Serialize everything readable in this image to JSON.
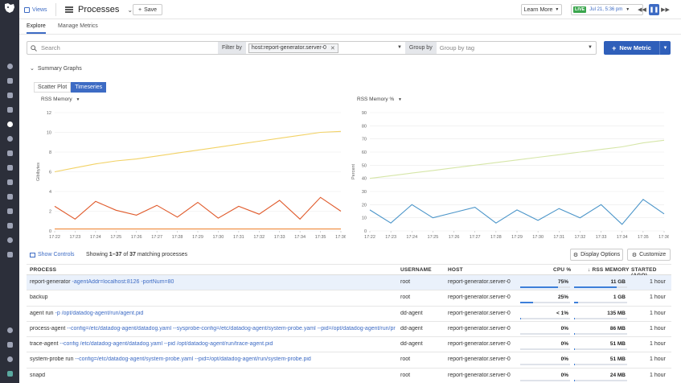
{
  "topbar": {
    "views_label": "Views",
    "title": "Processes",
    "save_label": "Save",
    "learn_more_label": "Learn More",
    "live_badge": "LIVE",
    "live_time": "Jul 21, 5:36 pm"
  },
  "tabs": [
    {
      "label": "Explore",
      "active": true
    },
    {
      "label": "Manage Metrics",
      "active": false
    }
  ],
  "search": {
    "placeholder": "Search"
  },
  "filter": {
    "label": "Filter by",
    "chip": "host:report-generator.server-0"
  },
  "groupby": {
    "label": "Group by",
    "placeholder": "Group by tag"
  },
  "new_metric_label": "New Metric",
  "summary": {
    "heading": "Summary Graphs",
    "toggle": [
      "Scatter Plot",
      "Timeseries"
    ],
    "active_toggle": "Timeseries"
  },
  "chart_data": [
    {
      "type": "line",
      "metric_selector": "RSS Memory",
      "ylabel": "Gibibytes",
      "ylim": [
        0,
        12
      ],
      "yticks": [
        "0",
        "2",
        "4",
        "6",
        "8",
        "10",
        "12"
      ],
      "x": [
        "17:22",
        "17:23",
        "17:24",
        "17:25",
        "17:26",
        "17:27",
        "17:28",
        "17:29",
        "17:30",
        "17:31",
        "17:32",
        "17:33",
        "17:34",
        "17:35",
        "17:36"
      ],
      "series": [
        {
          "color": "#f2d266",
          "values": [
            6,
            6.4,
            6.8,
            7.1,
            7.3,
            7.6,
            7.9,
            8.2,
            8.5,
            8.8,
            9.1,
            9.4,
            9.7,
            10.0,
            10.1
          ]
        },
        {
          "color": "#e05a2b",
          "values": [
            2.5,
            1.2,
            3.0,
            2.1,
            1.6,
            2.6,
            1.4,
            2.9,
            1.3,
            2.5,
            1.7,
            3.1,
            1.2,
            3.4,
            2.0
          ]
        },
        {
          "color": "#f08a3c",
          "values": [
            0.2,
            0.2,
            0.2,
            0.2,
            0.2,
            0.2,
            0.2,
            0.2,
            0.2,
            0.2,
            0.2,
            0.2,
            0.2,
            0.2,
            0.2
          ]
        }
      ]
    },
    {
      "type": "line",
      "metric_selector": "RSS Memory %",
      "ylabel": "Percent",
      "ylim": [
        0,
        90
      ],
      "yticks": [
        "0",
        "10",
        "20",
        "30",
        "40",
        "50",
        "60",
        "70",
        "80",
        "90"
      ],
      "x": [
        "17:22",
        "17:23",
        "17:24",
        "17:25",
        "17:26",
        "17:27",
        "17:28",
        "17:29",
        "17:30",
        "17:31",
        "17:32",
        "17:33",
        "17:34",
        "17:35",
        "17:36"
      ],
      "series": [
        {
          "color": "#d6e6a8",
          "values": [
            40,
            42,
            44,
            46,
            48,
            50,
            52,
            54,
            56,
            58,
            60,
            62,
            64,
            67,
            69
          ]
        },
        {
          "color": "#4b95c9",
          "values": [
            16,
            6,
            20,
            10,
            14,
            18,
            6,
            16,
            8,
            17,
            10,
            20,
            5,
            24,
            13
          ]
        }
      ]
    }
  ],
  "table_controls": {
    "show_controls": "Show Controls",
    "showing_prefix": "Showing ",
    "showing_range": "1–37",
    "showing_of": " of ",
    "showing_total": "37",
    "showing_suffix": " matching processes",
    "display_options": "Display Options",
    "customize": "Customize"
  },
  "table": {
    "headers": {
      "process": "PROCESS",
      "username": "USERNAME",
      "host": "HOST",
      "cpu": "CPU %",
      "rss": "RSS MEMORY",
      "started": "STARTED (AGO)"
    },
    "rows": [
      {
        "cmd": "report-generator",
        "args": " -agentAddr=localhost:8126 -portNum=80",
        "user": "root",
        "host": "report-generator.server-0",
        "cpu": "75%",
        "cpu_frac": 0.75,
        "rss": "11 GB",
        "rss_frac": 0.8,
        "started": "1 hour",
        "selected": true
      },
      {
        "cmd": "backup",
        "args": "",
        "user": "root",
        "host": "report-generator.server-0",
        "cpu": "25%",
        "cpu_frac": 0.25,
        "rss": "1 GB",
        "rss_frac": 0.08,
        "started": "1 hour",
        "selected": false
      },
      {
        "cmd": "agent run",
        "args": " -p /opt/datadog-agent/run/agent.pid",
        "user": "dd-agent",
        "host": "report-generator.server-0",
        "cpu": "< 1%",
        "cpu_frac": 0.01,
        "rss": "135 MB",
        "rss_frac": 0.01,
        "started": "1 hour",
        "selected": false
      },
      {
        "cmd": "process-agent",
        "args": " --config=/etc/datadog-agent/datadog.yaml --sysprobe-config=/etc/datadog-agent/system-probe.yaml --pid=/opt/datadog-agent/run/pro...",
        "user": "dd-agent",
        "host": "report-generator.server-0",
        "cpu": "0%",
        "cpu_frac": 0,
        "rss": "86 MB",
        "rss_frac": 0.007,
        "started": "1 hour",
        "selected": false
      },
      {
        "cmd": "trace-agent",
        "args": " --config /etc/datadog-agent/datadog.yaml --pid /opt/datadog-agent/run/trace-agent.pid",
        "user": "dd-agent",
        "host": "report-generator.server-0",
        "cpu": "0%",
        "cpu_frac": 0,
        "rss": "51 MB",
        "rss_frac": 0.005,
        "started": "1 hour",
        "selected": false
      },
      {
        "cmd": "system-probe run",
        "args": " --config=/etc/datadog-agent/system-probe.yaml --pid=/opt/datadog-agent/run/system-probe.pid",
        "user": "root",
        "host": "report-generator.server-0",
        "cpu": "0%",
        "cpu_frac": 0,
        "rss": "51 MB",
        "rss_frac": 0.005,
        "started": "1 hour",
        "selected": false
      },
      {
        "cmd": "snapd",
        "args": "",
        "user": "root",
        "host": "report-generator.server-0",
        "cpu": "0%",
        "cpu_frac": 0,
        "rss": "24 MB",
        "rss_frac": 0.003,
        "started": "1 hour",
        "selected": false
      }
    ]
  },
  "icons": {
    "logo": "datadog-logo",
    "colors": {
      "accent": "#3d6bc4",
      "live": "#3aa64d",
      "nav_bg": "#2c2f3a"
    }
  }
}
